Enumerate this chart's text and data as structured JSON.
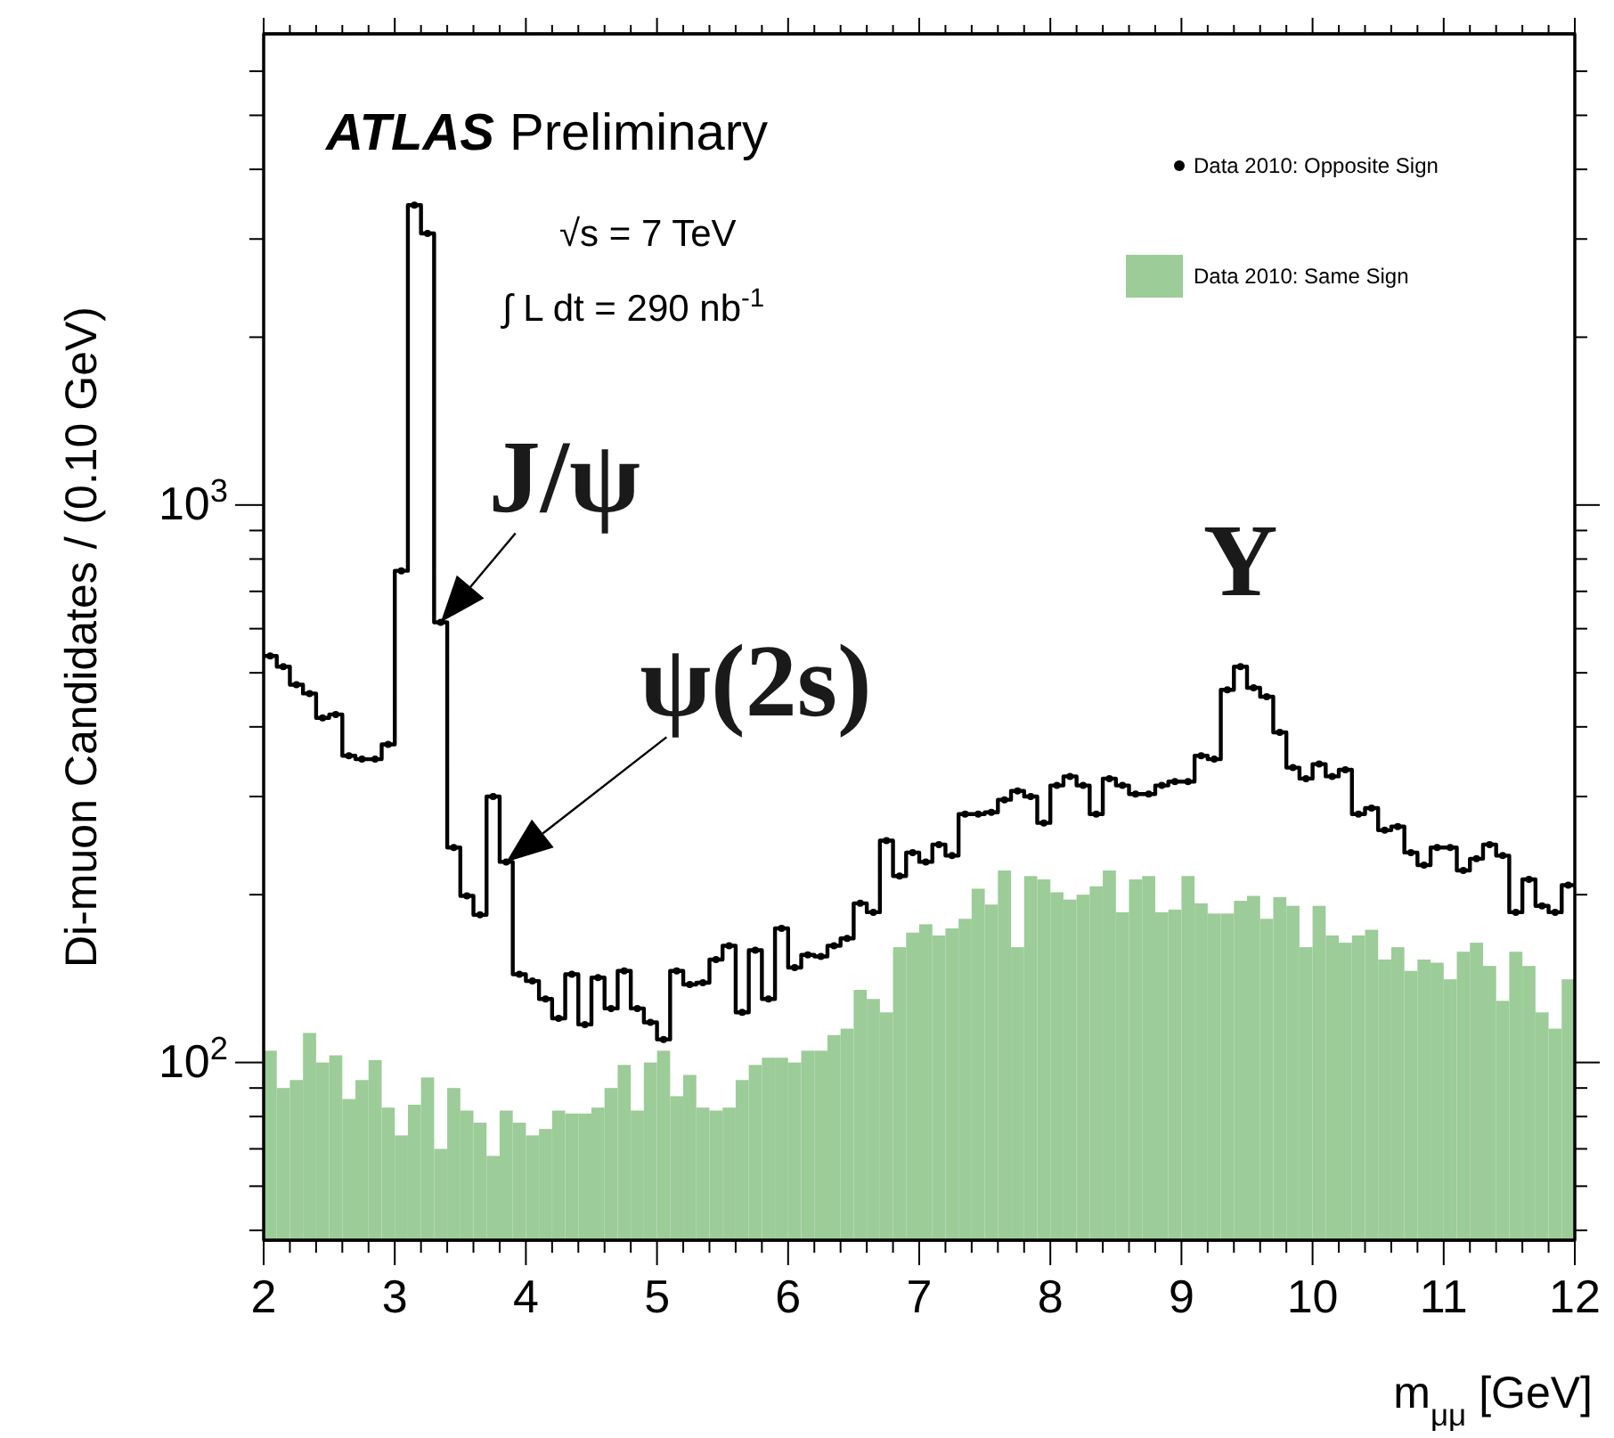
{
  "chart_data": {
    "type": "histogram",
    "xlabel": "m$_{μμ}$ [GeV]",
    "ylabel": "Di-muon Candidates / (0.10 GeV)",
    "log": "y",
    "legend": "top right",
    "marker": "circle",
    "bins": [
      2,
      2.1,
      2.2,
      2.3,
      2.4,
      2.5,
      2.6,
      2.7,
      2.8,
      2.9,
      3,
      3.1,
      3.2,
      3.3,
      3.4,
      3.5,
      3.6,
      3.7,
      3.8,
      3.9,
      4,
      4.1,
      4.2,
      4.3,
      4.4,
      4.5,
      4.6,
      4.7,
      4.8,
      4.9,
      5,
      5.1,
      5.2,
      5.3,
      5.4,
      5.5,
      5.6,
      5.7,
      5.8,
      5.9,
      6,
      6.1,
      6.2,
      6.3,
      6.4,
      6.5,
      6.6,
      6.7,
      6.8,
      6.9,
      7,
      7.1,
      7.2,
      7.3,
      7.4,
      7.5,
      7.6,
      7.7,
      7.8,
      7.9,
      8,
      8.1,
      8.2,
      8.3,
      8.4,
      8.5,
      8.6,
      8.7,
      8.8,
      8.9,
      9,
      9.1,
      9.2,
      9.3,
      9.4,
      9.5,
      9.6,
      9.7,
      9.8,
      9.9,
      10,
      10.1,
      10.2,
      10.3,
      10.4,
      10.5,
      10.6,
      10.7,
      10.8,
      10.9,
      11,
      11.1,
      11.2,
      11.3,
      11.4,
      11.5,
      11.6,
      11.7,
      11.8,
      11.9,
      12
    ],
    "series": [
      {
        "name": "Data 2010: Same Sign",
        "color": "#9ccc98",
        "values": [
          105,
          90,
          93,
          113,
          100,
          103,
          86,
          93,
          101,
          83,
          74,
          84,
          94,
          70,
          90,
          82,
          78,
          68,
          82,
          78,
          74,
          76,
          82,
          81,
          81,
          83,
          90,
          99,
          82,
          100,
          105,
          87,
          95,
          83,
          82,
          83,
          93,
          99,
          102,
          102,
          100,
          105,
          105,
          112,
          115,
          135,
          130,
          123,
          161,
          171,
          177,
          169,
          174,
          181,
          205,
          192,
          221,
          161,
          216,
          213,
          202,
          196,
          200,
          207,
          221,
          186,
          213,
          216,
          186,
          188,
          216,
          193,
          185,
          185,
          195,
          199,
          181,
          198,
          191,
          161,
          191,
          169,
          164,
          169,
          173,
          153,
          161,
          146,
          153,
          151,
          141,
          158,
          164,
          149,
          129,
          158,
          149,
          123,
          115,
          141
        ]
      },
      {
        "name": "Data 2010: Opposite Sign",
        "type": "step",
        "color": "#000000",
        "x": [
          2.05,
          2.15,
          2.25,
          2.35,
          2.45,
          2.55,
          2.65,
          2.75,
          2.85,
          2.95,
          3.05,
          3.15,
          3.25,
          3.35,
          3.45,
          3.55,
          3.65,
          3.75,
          3.85,
          3.95,
          4.05,
          4.15,
          4.25,
          4.35,
          4.45,
          4.55,
          4.65,
          4.75,
          4.85,
          4.95,
          5.05,
          5.15,
          5.25,
          5.35,
          5.45,
          5.55,
          5.65,
          5.75,
          5.85,
          5.95,
          6.05,
          6.15,
          6.25,
          6.35,
          6.45,
          6.55,
          6.65,
          6.75,
          6.85,
          6.95,
          7.05,
          7.15,
          7.25,
          7.35,
          7.45,
          7.55,
          7.65,
          7.75,
          7.85,
          7.95,
          8.05,
          8.15,
          8.25,
          8.35,
          8.45,
          8.55,
          8.65,
          8.75,
          8.85,
          8.95,
          9.05,
          9.15,
          9.25,
          9.35,
          9.45,
          9.55,
          9.65,
          9.75,
          9.85,
          9.95,
          10.05,
          10.15,
          10.25,
          10.35,
          10.45,
          10.55,
          10.65,
          10.75,
          10.85,
          10.95,
          11.05,
          11.15,
          11.25,
          11.35,
          11.45,
          11.55,
          11.65,
          11.75,
          11.85,
          11.95
        ],
        "values": [
          536,
          513,
          476,
          459,
          415,
          421,
          355,
          350,
          350,
          372,
          762,
          3450,
          3070,
          616,
          243,
          199,
          184,
          300,
          229,
          144,
          140,
          130,
          120,
          144,
          117,
          142,
          125,
          146,
          125,
          118,
          110,
          146,
          138,
          139,
          153,
          162,
          123,
          159,
          130,
          174,
          148,
          156,
          155,
          162,
          167,
          193,
          186,
          250,
          216,
          238,
          229,
          246,
          235,
          279,
          279,
          281,
          296,
          307,
          300,
          269,
          314,
          326,
          314,
          279,
          323,
          314,
          303,
          303,
          314,
          319,
          319,
          355,
          350,
          466,
          513,
          470,
          453,
          391,
          338,
          323,
          343,
          326,
          335,
          279,
          286,
          261,
          265,
          238,
          226,
          243,
          243,
          221,
          232,
          246,
          235,
          186,
          213,
          191,
          186,
          208
        ]
      }
    ],
    "xlim": [
      2,
      12
    ],
    "ylim": [
      48,
      7000
    ],
    "xticks": [
      2,
      {
        "value": 2.2,
        "label": null
      },
      {
        "value": 2.4,
        "label": null
      },
      {
        "value": 2.6,
        "label": null
      },
      {
        "value": 2.8,
        "label": null
      },
      3,
      {
        "value": 3.2,
        "label": null
      },
      {
        "value": 3.4,
        "label": null
      },
      {
        "value": 3.6,
        "label": null
      },
      {
        "value": 3.8,
        "label": null
      },
      4,
      {
        "value": 4.2,
        "label": null
      },
      {
        "value": 4.4,
        "label": null
      },
      {
        "value": 4.6,
        "label": null
      },
      {
        "value": 4.8,
        "label": null
      },
      5,
      {
        "value": 5.2,
        "label": null
      },
      {
        "value": 5.4,
        "label": null
      },
      {
        "value": 5.6,
        "label": null
      },
      {
        "value": 5.8,
        "label": null
      },
      6,
      {
        "value": 6.2,
        "label": null
      },
      {
        "value": 6.4,
        "label": null
      },
      {
        "value": 6.6,
        "label": null
      },
      {
        "value": 6.8,
        "label": null
      },
      7,
      {
        "value": 7.2,
        "label": null
      },
      {
        "value": 7.4,
        "label": null
      },
      {
        "value": 7.6,
        "label": null
      },
      {
        "value": 7.8,
        "label": null
      },
      8,
      {
        "value": 8.2,
        "label": null
      },
      {
        "value": 8.4,
        "label": null
      },
      {
        "value": 8.6,
        "label": null
      },
      {
        "value": 8.8,
        "label": null
      },
      9,
      {
        "value": 9.2,
        "label": null
      },
      {
        "value": 9.4,
        "label": null
      },
      {
        "value": 9.6,
        "label": null
      },
      {
        "value": 9.8,
        "label": null
      },
      10,
      {
        "value": 10.2,
        "label": null
      },
      {
        "value": 10.4,
        "label": null
      },
      {
        "value": 10.6,
        "label": null
      },
      {
        "value": 10.8,
        "label": null
      },
      11,
      {
        "value": 11.2,
        "label": null
      },
      {
        "value": 11.4,
        "label": null
      },
      {
        "value": 11.6,
        "label": null
      },
      {
        "value": 11.8,
        "label": null
      },
      12
    ],
    "yticks": [
      {
        "value": 50,
        "label": null
      },
      {
        "value": 60,
        "label": null
      },
      {
        "value": 70,
        "label": null
      },
      {
        "value": 80,
        "label": null
      },
      {
        "value": 90,
        "label": null
      },
      {
        "value": 100,
        "label": "10$^{2}$"
      },
      {
        "value": 200,
        "label": null
      },
      {
        "value": 300,
        "label": null
      },
      {
        "value": 400,
        "label": null
      },
      {
        "value": 500,
        "label": null
      },
      {
        "value": 600,
        "label": null
      },
      {
        "value": 700,
        "label": null
      },
      {
        "value": 800,
        "label": null
      },
      {
        "value": 900,
        "label": null
      },
      {
        "value": 1000,
        "label": "10$^{3}$"
      },
      {
        "value": 2000,
        "label": null
      },
      {
        "value": 3000,
        "label": null
      },
      {
        "value": 4000,
        "label": null
      },
      {
        "value": 5000,
        "label": null
      },
      {
        "value": 6000,
        "label": null
      }
    ],
    "annotations": [
      "ATLAS",
      "Preliminary",
      "√s = 7 TeV",
      "∫ L dt = 290 nb$^{-1}$",
      {
        "text": "J/ψ",
        "x": 3.35,
        "y": 616
      },
      {
        "text": "ψ(2s)",
        "x": 3.85,
        "y": 229
      },
      {
        "text": "Υ",
        "x": 9.45,
        "y": 513
      }
    ]
  }
}
